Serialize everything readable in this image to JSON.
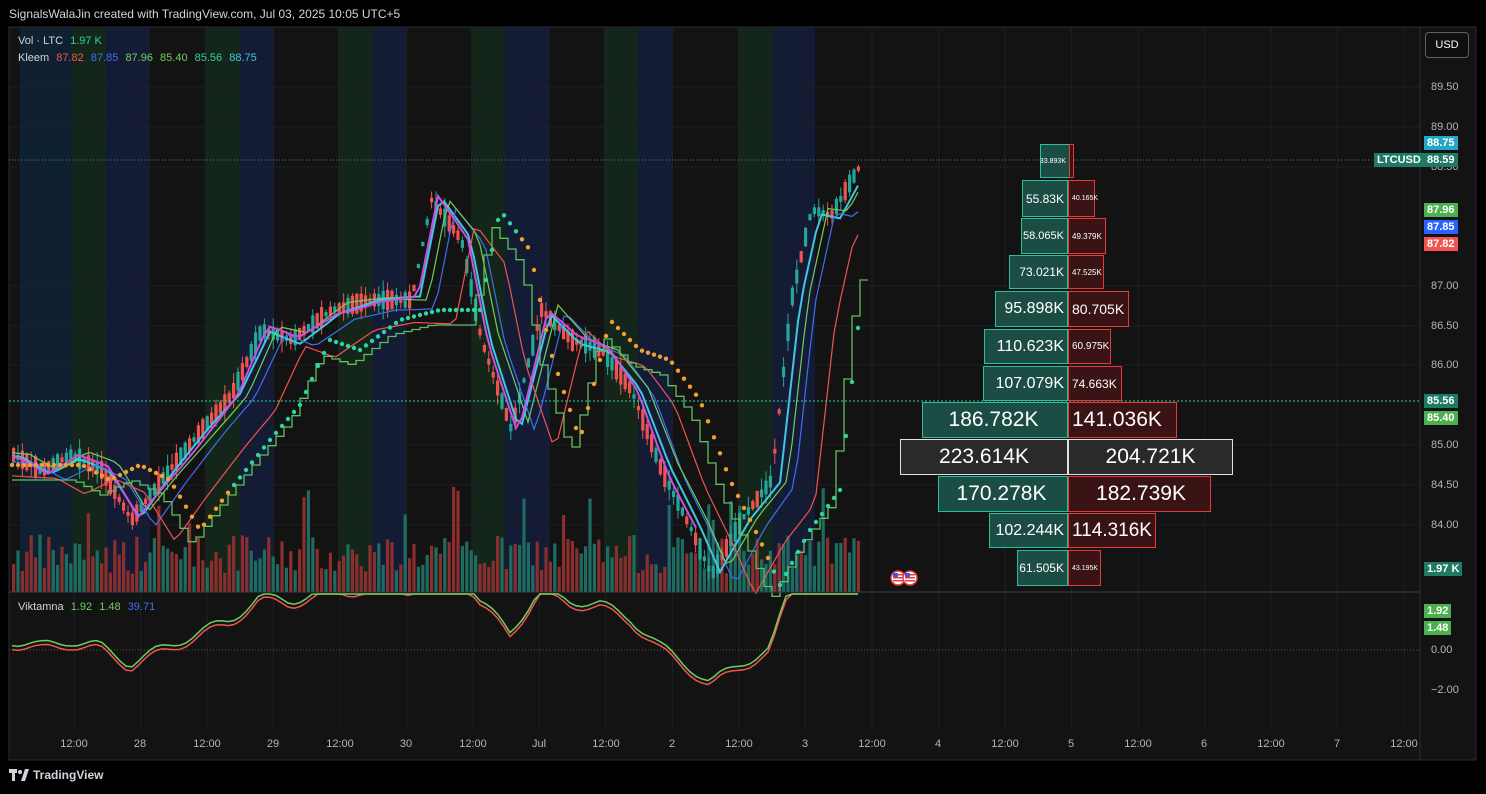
{
  "header": {
    "title": "SignalsWalaJin created with TradingView.com, Jul 03, 2025 10:05 UTC+5"
  },
  "currency_button": "USD",
  "legend": {
    "vol": {
      "name": "Vol · LTC",
      "value": "1.97 K"
    },
    "kleem": {
      "name": "Kleem",
      "values": [
        "87.82",
        "87.85",
        "87.96",
        "85.40",
        "85.56",
        "88.75"
      ],
      "colors": [
        "#f05350",
        "#3d6ef5",
        "#6fcf5f",
        "#6fcf5f",
        "#2bd6a0",
        "#3ec7e0"
      ]
    },
    "viktamna": {
      "name": "Viktamna",
      "values": [
        "1.92",
        "1.48",
        "39.71"
      ],
      "colors": [
        "#6fcf5f",
        "#6fcf5f",
        "#3d6ef5"
      ]
    }
  },
  "price_axis": [
    "89.50",
    "89.00",
    "88.50",
    "87.00",
    "86.50",
    "86.00",
    "85.00",
    "84.50",
    "84.00"
  ],
  "osc_axis": [
    "0.00",
    "−2.00"
  ],
  "price_tags": [
    {
      "label": "88.75",
      "color": "#26a6c6"
    },
    {
      "label": "LTCUSD",
      "color": "#1e7a63"
    },
    {
      "label": "88.59",
      "color": "#1e7a63"
    },
    {
      "label": "87.96",
      "color": "#4caf50"
    },
    {
      "label": "87.85",
      "color": "#2962ff"
    },
    {
      "label": "87.82",
      "color": "#f05350"
    },
    {
      "label": "85.56",
      "color": "#1e7a63"
    },
    {
      "label": "85.40",
      "color": "#4caf50"
    },
    {
      "label": "1.97 K",
      "color": "#1e7a63"
    },
    {
      "label": "1.92",
      "color": "#4caf50"
    },
    {
      "label": "1.48",
      "color": "#4caf50"
    }
  ],
  "time_axis": [
    "12:00",
    "28",
    "12:00",
    "29",
    "12:00",
    "30",
    "12:00",
    "Jul",
    "12:00",
    "2",
    "12:00",
    "3",
    "12:00",
    "4",
    "12:00",
    "5",
    "12:00",
    "6",
    "12:00",
    "7",
    "12:00"
  ],
  "volume_profile": [
    {
      "buy": "33.893K",
      "sell": ""
    },
    {
      "buy": "55.83K",
      "sell": "40.165K"
    },
    {
      "buy": "58.065K",
      "sell": "49.379K"
    },
    {
      "buy": "73.021K",
      "sell": "47.525K"
    },
    {
      "buy": "95.898K",
      "sell": "80.705K"
    },
    {
      "buy": "110.623K",
      "sell": "60.975K"
    },
    {
      "buy": "107.079K",
      "sell": "74.663K"
    },
    {
      "buy": "186.782K",
      "sell": "141.036K"
    },
    {
      "buy": "223.614K",
      "sell": "204.721K"
    },
    {
      "buy": "170.278K",
      "sell": "182.739K"
    },
    {
      "buy": "102.244K",
      "sell": "114.316K"
    },
    {
      "buy": "61.505K",
      "sell": "43.195K"
    }
  ],
  "footer": {
    "brand": "TradingView"
  }
}
